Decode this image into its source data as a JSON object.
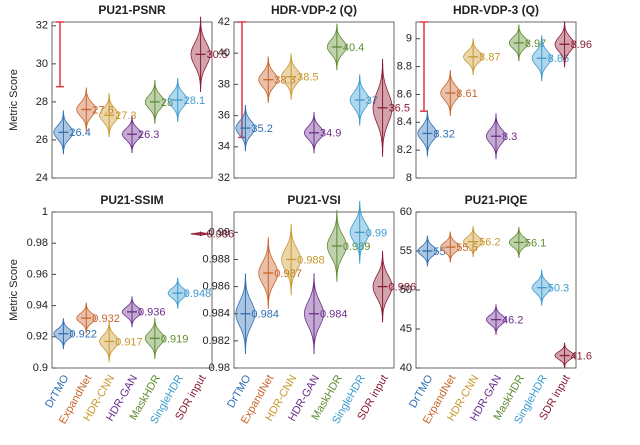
{
  "chart_data": [
    {
      "type": "violin",
      "title": "PU21-PSNR",
      "ylabel": "Metric Score",
      "values": [
        26.4,
        27.6,
        27.3,
        26.3,
        28,
        28.1,
        30.5
      ],
      "spread": [
        0.35,
        0.35,
        0.35,
        0.3,
        0.35,
        0.35,
        0.6
      ],
      "colors": [
        "#2f6fb3",
        "#c8642a",
        "#c9982e",
        "#6b2d8c",
        "#5e8c2f",
        "#3b9bd0",
        "#8c1c35"
      ],
      "ylim": [
        24,
        32.2
      ],
      "yticks": [
        24,
        26,
        28,
        30,
        32
      ],
      "range_bar": [
        28.8,
        32.2
      ],
      "range_bar_color": "#e0393e"
    },
    {
      "type": "violin",
      "title": "HDR-VDP-2 (Q)",
      "values": [
        35.2,
        38.3,
        38.5,
        34.9,
        40.4,
        37,
        36.5
      ],
      "spread": [
        0.45,
        0.45,
        0.45,
        0.4,
        0.45,
        0.5,
        0.95
      ],
      "colors": [
        "#2f6fb3",
        "#c8642a",
        "#c9982e",
        "#6b2d8c",
        "#5e8c2f",
        "#3b9bd0",
        "#8c1c35"
      ],
      "ylim": [
        32,
        42
      ],
      "yticks": [
        32,
        34,
        36,
        38,
        40,
        42
      ],
      "range_bar": [
        34.6,
        42
      ],
      "range_bar_color": "#e0393e"
    },
    {
      "type": "violin",
      "title": "HDR-VDP-3 (Q)",
      "values": [
        8.32,
        8.61,
        8.87,
        8.3,
        8.97,
        8.86,
        8.96
      ],
      "spread": [
        0.05,
        0.05,
        0.04,
        0.05,
        0.04,
        0.05,
        0.05
      ],
      "colors": [
        "#2f6fb3",
        "#c8642a",
        "#c9982e",
        "#6b2d8c",
        "#5e8c2f",
        "#3b9bd0",
        "#8c1c35"
      ],
      "ylim": [
        8,
        9.12
      ],
      "yticks": [
        8,
        8.2,
        8.4,
        8.6,
        8.8,
        9
      ],
      "range_bar": [
        8.48,
        9.12
      ],
      "range_bar_color": "#e0393e"
    },
    {
      "type": "violin",
      "title": "PU21-SSIM",
      "ylabel": "Metric Score",
      "categories": [
        "DrTMO",
        "ExpandNet",
        "HDR-CNN",
        "HDR-GAN",
        "MaskHDR",
        "SingleHDR",
        "SDR input"
      ],
      "values": [
        0.922,
        0.932,
        0.917,
        0.936,
        0.919,
        0.948,
        0.986
      ],
      "spread": [
        0.003,
        0.003,
        0.004,
        0.003,
        0.004,
        0.003,
        0.0004
      ],
      "colors": [
        "#2f6fb3",
        "#c8642a",
        "#c9982e",
        "#6b2d8c",
        "#5e8c2f",
        "#3b9bd0",
        "#8c1c35"
      ],
      "ylim": [
        0.9,
        1
      ],
      "yticks": [
        0.9,
        0.92,
        0.94,
        0.96,
        0.98,
        1
      ]
    },
    {
      "type": "violin",
      "title": "PU21-VSI",
      "categories": [
        "DrTMO",
        "ExpandNet",
        "HDR-CNN",
        "HDR-GAN",
        "MaskHDR",
        "SingleHDR",
        "SDR input"
      ],
      "values": [
        0.984,
        0.987,
        0.988,
        0.984,
        0.989,
        0.99,
        0.986
      ],
      "spread": [
        0.0009,
        0.0008,
        0.0008,
        0.0009,
        0.0008,
        0.0007,
        0.0008
      ],
      "colors": [
        "#2f6fb3",
        "#c8642a",
        "#c9982e",
        "#6b2d8c",
        "#5e8c2f",
        "#3b9bd0",
        "#8c1c35"
      ],
      "ylim": [
        0.98,
        0.9915
      ],
      "yticks": [
        0.98,
        0.982,
        0.984,
        0.986,
        0.988,
        0.99
      ]
    },
    {
      "type": "violin",
      "title": "PU21-PIQE",
      "categories": [
        "DrTMO",
        "ExpandNet",
        "HDR-CNN",
        "HDR-GAN",
        "MaskHDR",
        "SingleHDR",
        "SDR input"
      ],
      "values": [
        55,
        55.5,
        56.2,
        46.2,
        56.1,
        50.3,
        41.6
      ],
      "spread": [
        0.6,
        0.6,
        0.6,
        0.6,
        0.6,
        0.7,
        0.5
      ],
      "colors": [
        "#2f6fb3",
        "#c8642a",
        "#c9982e",
        "#6b2d8c",
        "#5e8c2f",
        "#3b9bd0",
        "#8c1c35"
      ],
      "ylim": [
        40,
        60
      ],
      "yticks": [
        40,
        45,
        50,
        55,
        60
      ]
    }
  ]
}
